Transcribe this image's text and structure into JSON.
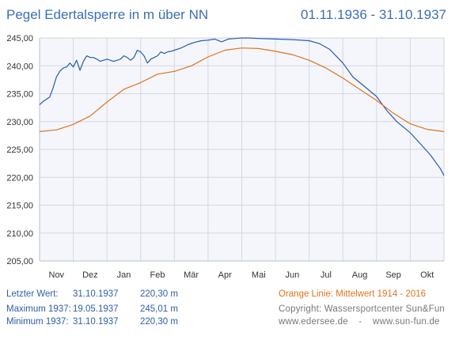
{
  "header": {
    "title": "Pegel Edertalsperre in m über NN",
    "period": "01.11.1936 - 31.10.1937"
  },
  "colors": {
    "current_line": "#2a5cab",
    "mean_line": "#e0731c",
    "plot_bg": "#f4f6fc",
    "grid": "#d3d7e0",
    "axis_text": "#333333"
  },
  "chart_data": {
    "type": "line",
    "ylim": [
      205,
      245
    ],
    "yticks": [
      "205,00",
      "210,00",
      "215,00",
      "220,00",
      "225,00",
      "230,00",
      "235,00",
      "240,00",
      "245,00"
    ],
    "ytick_values": [
      205,
      210,
      215,
      220,
      225,
      230,
      235,
      240,
      245
    ],
    "xlim": [
      0,
      12
    ],
    "xticks": [
      "Nov",
      "Dez",
      "Jan",
      "Feb",
      "Mär",
      "Apr",
      "Mai",
      "Jun",
      "Jul",
      "Aug",
      "Sep",
      "Okt"
    ],
    "grid": true,
    "series": [
      {
        "key": "current",
        "x": [
          0,
          0.1,
          0.2,
          0.3,
          0.4,
          0.5,
          0.6,
          0.7,
          0.8,
          0.9,
          1.0,
          1.1,
          1.2,
          1.3,
          1.4,
          1.5,
          1.6,
          1.7,
          1.8,
          1.9,
          2.0,
          2.1,
          2.2,
          2.3,
          2.4,
          2.5,
          2.6,
          2.7,
          2.8,
          2.9,
          3.0,
          3.1,
          3.2,
          3.3,
          3.4,
          3.5,
          3.6,
          3.7,
          3.8,
          3.9,
          4.0,
          4.2,
          4.4,
          4.6,
          4.8,
          5.0,
          5.2,
          5.4,
          5.6,
          5.8,
          6.0,
          6.2,
          6.5,
          7.0,
          7.5,
          8.0,
          8.3,
          8.6,
          9.0,
          9.3,
          9.6,
          10.0,
          10.3,
          10.6,
          11.0,
          11.3,
          11.6,
          11.9,
          12.0
        ],
        "values": [
          233.0,
          233.6,
          234.0,
          234.4,
          236.0,
          238.0,
          239.0,
          239.6,
          239.8,
          240.5,
          239.8,
          241.0,
          239.2,
          240.8,
          241.8,
          241.5,
          241.5,
          241.2,
          240.8,
          241.0,
          241.2,
          241.0,
          240.8,
          241.0,
          241.2,
          241.8,
          241.5,
          241.0,
          241.5,
          242.8,
          242.5,
          241.8,
          240.5,
          241.2,
          241.5,
          241.8,
          242.5,
          242.2,
          242.5,
          242.6,
          242.8,
          243.2,
          243.8,
          244.2,
          244.5,
          244.6,
          244.8,
          244.3,
          244.8,
          244.9,
          245.0,
          245.0,
          244.9,
          244.8,
          244.7,
          244.5,
          244.0,
          243.0,
          240.5,
          238.0,
          236.5,
          234.5,
          232.0,
          230.0,
          228.0,
          226.0,
          224.0,
          221.5,
          220.3
        ]
      },
      {
        "key": "mean",
        "x": [
          0,
          0.5,
          1.0,
          1.5,
          2.0,
          2.5,
          3.0,
          3.5,
          4.0,
          4.5,
          5.0,
          5.5,
          6.0,
          6.5,
          7.0,
          7.5,
          8.0,
          8.5,
          9.0,
          9.5,
          10.0,
          10.5,
          11.0,
          11.5,
          12.0
        ],
        "values": [
          228.2,
          228.5,
          229.5,
          231.0,
          233.5,
          235.8,
          237.0,
          238.5,
          239.0,
          240.0,
          241.6,
          242.8,
          243.2,
          243.1,
          242.6,
          242.0,
          241.0,
          239.6,
          237.8,
          235.8,
          233.8,
          231.5,
          229.6,
          228.6,
          228.2
        ]
      }
    ]
  },
  "footer": {
    "last_label": "Letzter Wert:",
    "last_date": "31.10.1937",
    "last_value": "220,30 m",
    "max_label": "Maximum 1937:",
    "max_date": "19.05.1937",
    "max_value": "245,01 m",
    "min_label": "Minimum  1937:",
    "min_date": "31.10.1937",
    "min_value": "220,30 m",
    "legend_note": "Orange Linie:   Mittelwert   1914 - 2016",
    "copyright": "Copyright: Wassersportcenter Sun&Fun",
    "links": "www.edersee.de    -    www.sun-fun.de"
  }
}
